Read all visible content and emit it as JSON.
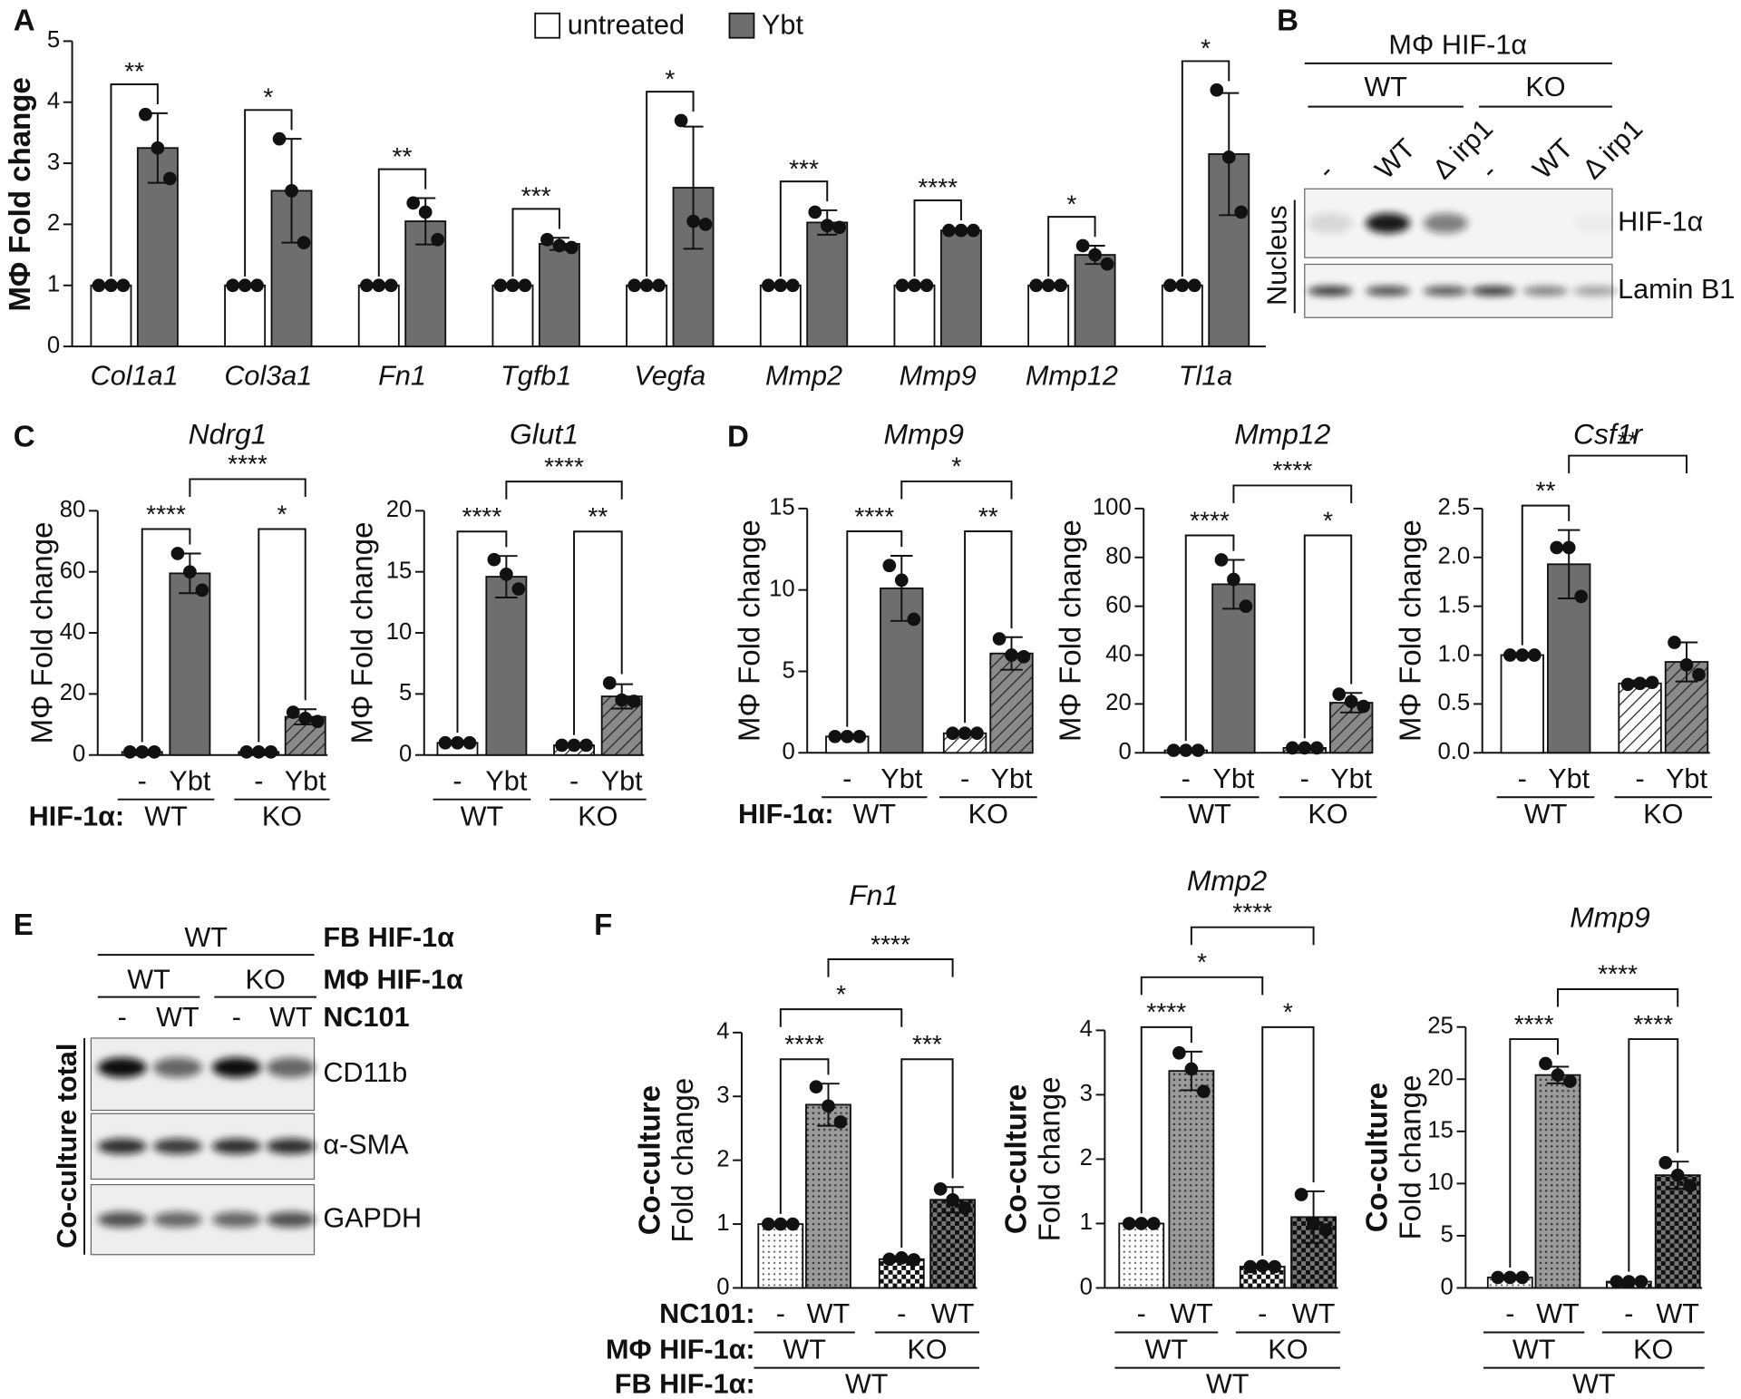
{
  "panels": [
    "A",
    "B",
    "C",
    "D",
    "E",
    "F"
  ],
  "chart_data": [
    {
      "type": "grouped_bar",
      "ylabel": "MΦ Fold change",
      "ylim": [
        0,
        5
      ],
      "yticks": [
        0,
        1,
        2,
        3,
        4,
        5
      ],
      "categories": [
        "Col1a1",
        "Col3a1",
        "Fn1",
        "Tgfb1",
        "Vegfa",
        "Mmp2",
        "Mmp9",
        "Mmp12",
        "Tl1a"
      ],
      "series": [
        {
          "name": "untreated",
          "color": "#ffffff",
          "values": [
            1,
            1,
            1,
            1,
            1,
            1,
            1,
            1,
            1
          ],
          "errors": [
            0,
            0,
            0,
            0,
            0,
            0,
            0,
            0,
            0
          ],
          "points": [
            [
              1,
              1,
              1
            ],
            [
              1,
              1,
              1
            ],
            [
              1,
              1,
              1
            ],
            [
              1,
              1,
              1
            ],
            [
              1,
              1,
              1
            ],
            [
              1,
              1,
              1
            ],
            [
              1,
              1,
              1
            ],
            [
              1,
              1,
              1
            ],
            [
              1,
              1,
              1
            ]
          ]
        },
        {
          "name": "Ybt",
          "color": "#6e6e6e",
          "values": [
            3.25,
            2.55,
            2.05,
            1.68,
            2.6,
            2.03,
            1.9,
            1.5,
            3.15
          ],
          "errors": [
            0.57,
            0.85,
            0.38,
            0.1,
            1.0,
            0.2,
            0.02,
            0.15,
            1.0
          ],
          "points": [
            [
              3.8,
              3.25,
              2.75
            ],
            [
              3.4,
              2.55,
              1.7
            ],
            [
              2.35,
              2.2,
              1.75
            ],
            [
              1.75,
              1.65,
              1.62
            ],
            [
              3.7,
              2.05,
              2.0
            ],
            [
              2.2,
              1.98,
              1.95
            ],
            [
              1.9,
              1.9,
              1.9
            ],
            [
              1.65,
              1.5,
              1.35
            ],
            [
              4.2,
              3.1,
              2.2
            ]
          ]
        }
      ],
      "annotations": [
        "**",
        "*",
        "**",
        "***",
        "*",
        "***",
        "****",
        "*",
        "*"
      ]
    },
    {
      "type": "bar",
      "title": "Ndrg1",
      "ylabel": "MΦ Fold change",
      "ylim": [
        0,
        80
      ],
      "yticks": [
        0,
        20,
        40,
        60,
        80
      ],
      "categories": [
        "-",
        "Ybt",
        "-",
        "Ybt"
      ],
      "groups": [
        "WT",
        "KO"
      ],
      "group_label": "HIF-1α:",
      "fills": [
        "white",
        "gray",
        "hatch",
        "hatch-gray"
      ],
      "values": [
        1,
        59.5,
        1,
        12.5
      ],
      "errors": [
        0.3,
        6.5,
        0.3,
        2.5
      ],
      "points": [
        [
          1,
          1,
          1
        ],
        [
          66,
          60,
          54
        ],
        [
          1,
          1,
          1
        ],
        [
          14,
          12,
          11
        ]
      ],
      "significance": [
        {
          "label": "****",
          "bars": [
            0,
            1
          ]
        },
        {
          "label": "*",
          "bars": [
            2,
            3
          ]
        },
        {
          "label": "****",
          "bars": [
            1,
            3
          ]
        }
      ]
    },
    {
      "type": "bar",
      "title": "Glut1",
      "ylabel": "MΦ Fold change",
      "ylim": [
        0,
        20
      ],
      "yticks": [
        0,
        5,
        10,
        15,
        20
      ],
      "categories": [
        "-",
        "Ybt",
        "-",
        "Ybt"
      ],
      "groups": [
        "WT",
        "KO"
      ],
      "fills": [
        "white",
        "gray",
        "hatch",
        "hatch-gray"
      ],
      "values": [
        1,
        14.6,
        0.8,
        4.8
      ],
      "errors": [
        0.1,
        1.7,
        0.1,
        1.0
      ],
      "points": [
        [
          1,
          1,
          1
        ],
        [
          16,
          14.8,
          13.6
        ],
        [
          0.8,
          0.8,
          0.8
        ],
        [
          5.9,
          4.5,
          4.4
        ]
      ],
      "significance": [
        {
          "label": "****",
          "bars": [
            0,
            1
          ]
        },
        {
          "label": "**",
          "bars": [
            2,
            3
          ]
        },
        {
          "label": "****",
          "bars": [
            1,
            3
          ]
        }
      ]
    },
    {
      "type": "bar",
      "title": "Mmp9",
      "ylabel": "MΦ Fold change",
      "ylim": [
        0,
        15
      ],
      "yticks": [
        0,
        5,
        10,
        15
      ],
      "categories": [
        "-",
        "Ybt",
        "-",
        "Ybt"
      ],
      "groups": [
        "WT",
        "KO"
      ],
      "group_label": "HIF-1α:",
      "fills": [
        "white",
        "gray",
        "hatch",
        "hatch-gray"
      ],
      "values": [
        1,
        10.1,
        1.2,
        6.1
      ],
      "errors": [
        0.05,
        2.0,
        0.1,
        1.0
      ],
      "points": [
        [
          1,
          1,
          1
        ],
        [
          11.5,
          10.6,
          8.2
        ],
        [
          1.2,
          1.2,
          1.2
        ],
        [
          7,
          6,
          5.9
        ]
      ],
      "significance": [
        {
          "label": "****",
          "bars": [
            0,
            1
          ]
        },
        {
          "label": "**",
          "bars": [
            2,
            3
          ]
        },
        {
          "label": "*",
          "bars": [
            1,
            3
          ]
        }
      ]
    },
    {
      "type": "bar",
      "title": "Mmp12",
      "ylabel": "MΦ Fold change",
      "ylim": [
        0,
        100
      ],
      "yticks": [
        0,
        20,
        40,
        60,
        80,
        100
      ],
      "categories": [
        "-",
        "Ybt",
        "-",
        "Ybt"
      ],
      "groups": [
        "WT",
        "KO"
      ],
      "fills": [
        "white",
        "gray",
        "hatch",
        "hatch-gray"
      ],
      "values": [
        1,
        69,
        2,
        20.5
      ],
      "errors": [
        0.2,
        10,
        0.3,
        4
      ],
      "points": [
        [
          1,
          1,
          1
        ],
        [
          79,
          71,
          60
        ],
        [
          2,
          2,
          2
        ],
        [
          24,
          21,
          19
        ]
      ],
      "significance": [
        {
          "label": "****",
          "bars": [
            0,
            1
          ]
        },
        {
          "label": "*",
          "bars": [
            2,
            3
          ]
        },
        {
          "label": "****",
          "bars": [
            1,
            3
          ]
        }
      ]
    },
    {
      "type": "bar",
      "title": "Csf1r",
      "ylabel": "MΦ Fold change",
      "ylim": [
        0,
        2.5
      ],
      "yticks": [
        {
          "value": 0,
          "label": "0.0"
        },
        0.5,
        {
          "value": 1,
          "label": "1.0"
        },
        1.5,
        {
          "value": 2,
          "label": "2.0"
        },
        2.5
      ],
      "categories": [
        "-",
        "Ybt",
        "-",
        "Ybt"
      ],
      "groups": [
        "WT",
        "KO"
      ],
      "fills": [
        "white",
        "gray",
        "hatch",
        "hatch-gray"
      ],
      "values": [
        1,
        1.93,
        0.71,
        0.93
      ],
      "errors": [
        0.01,
        0.35,
        0.03,
        0.2
      ],
      "points": [
        [
          1,
          1,
          1
        ],
        [
          2.1,
          2.1,
          1.6
        ],
        [
          0.7,
          0.71,
          0.72
        ],
        [
          1.13,
          0.9,
          0.8
        ]
      ],
      "significance": [
        {
          "label": "**",
          "bars": [
            0,
            1
          ]
        },
        {
          "label": "**",
          "bars": [
            1,
            3
          ]
        }
      ]
    },
    {
      "type": "bar",
      "title": "Fn1",
      "ylabel": [
        "Co-culture",
        "Fold change"
      ],
      "ylim": [
        0,
        4
      ],
      "yticks": [
        0,
        1,
        2,
        3,
        4
      ],
      "categories": [
        "-",
        "WT",
        "-",
        "WT"
      ],
      "groups": [
        "WT",
        "KO"
      ],
      "supergroup": "WT",
      "category_label": "NC101:",
      "group_label": "MΦ HIF-1α:",
      "supergroup_label": "FB HIF-1α:",
      "fills": [
        "dots",
        "dots-gray",
        "checker",
        "checker-gray"
      ],
      "values": [
        1,
        2.87,
        0.45,
        1.38
      ],
      "errors": [
        0.02,
        0.33,
        0.04,
        0.2
      ],
      "points": [
        [
          1,
          1,
          1
        ],
        [
          3.15,
          2.85,
          2.6
        ],
        [
          0.45,
          0.47,
          0.44
        ],
        [
          1.55,
          1.38,
          1.25
        ]
      ],
      "significance": [
        {
          "label": "****",
          "bars": [
            0,
            1
          ]
        },
        {
          "label": "***",
          "bars": [
            2,
            3
          ]
        },
        {
          "label": "*",
          "bars": [
            0,
            2
          ]
        },
        {
          "label": "****",
          "bars": [
            1,
            3
          ]
        }
      ]
    },
    {
      "type": "bar",
      "title": "Mmp2",
      "ylabel": [
        "Co-culture",
        "Fold change"
      ],
      "ylim": [
        0,
        4
      ],
      "yticks": [
        0,
        1,
        2,
        3,
        4
      ],
      "categories": [
        "-",
        "WT",
        "-",
        "WT"
      ],
      "groups": [
        "WT",
        "KO"
      ],
      "supergroup": "WT",
      "fills": [
        "dots",
        "dots-gray",
        "checker",
        "checker-gray"
      ],
      "values": [
        1,
        3.37,
        0.33,
        1.1
      ],
      "errors": [
        0.02,
        0.3,
        0.03,
        0.4
      ],
      "points": [
        [
          1,
          1,
          1
        ],
        [
          3.65,
          3.4,
          3.05
        ],
        [
          0.33,
          0.34,
          0.33
        ],
        [
          1.45,
          1.0,
          0.9
        ]
      ],
      "significance": [
        {
          "label": "****",
          "bars": [
            0,
            1
          ]
        },
        {
          "label": "*",
          "bars": [
            2,
            3
          ]
        },
        {
          "label": "*",
          "bars": [
            0,
            2
          ]
        },
        {
          "label": "****",
          "bars": [
            1,
            3
          ]
        }
      ]
    },
    {
      "type": "bar",
      "title": "Mmp9",
      "ylabel": [
        "Co-culture",
        "Fold change"
      ],
      "ylim": [
        0,
        25
      ],
      "yticks": [
        0,
        5,
        10,
        15,
        20,
        25
      ],
      "categories": [
        "-",
        "WT",
        "-",
        "WT"
      ],
      "groups": [
        "WT",
        "KO"
      ],
      "supergroup": "WT",
      "fills": [
        "dots",
        "dots-gray",
        "checker",
        "checker-gray"
      ],
      "values": [
        1,
        20.4,
        0.6,
        10.8
      ],
      "errors": [
        0.1,
        0.8,
        0.1,
        1.3
      ],
      "points": [
        [
          1,
          1,
          1
        ],
        [
          21.5,
          20.4,
          19.8
        ],
        [
          0.6,
          0.6,
          0.6
        ],
        [
          12,
          10.8,
          9.8
        ]
      ],
      "significance": [
        {
          "label": "****",
          "bars": [
            0,
            1
          ]
        },
        {
          "label": "****",
          "bars": [
            2,
            3
          ]
        },
        {
          "label": "****",
          "bars": [
            1,
            3
          ]
        }
      ]
    }
  ],
  "blots": [
    {
      "title": "MΦ HIF-1α",
      "groups": [
        "WT",
        "KO"
      ],
      "lanes": [
        "-",
        "WT",
        "Δ irp1",
        "-",
        "WT",
        "Δ irp1"
      ],
      "rows": [
        "HIF-1α",
        "Lamin B1"
      ],
      "fraction": "Nucleus"
    },
    {
      "levels": [
        {
          "name": "FB HIF-1α",
          "groups": [
            "WT"
          ]
        },
        {
          "name": "MΦ HIF-1α",
          "groups": [
            "WT",
            "KO"
          ]
        },
        {
          "name": "NC101",
          "groups": [
            "-",
            "WT",
            "-",
            "WT"
          ]
        }
      ],
      "rows": [
        "CD11b",
        "α-SMA",
        "GAPDH"
      ],
      "fraction": "Co-culture total"
    }
  ]
}
